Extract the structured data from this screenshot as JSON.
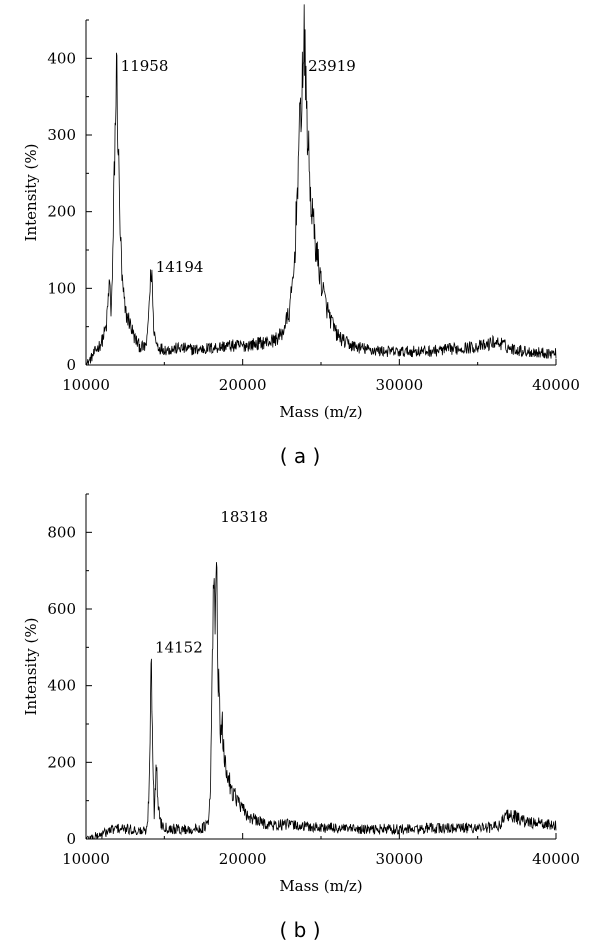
{
  "chart_data": [
    {
      "type": "line",
      "caption": "( a )",
      "xlabel": "Mass (m/z)",
      "ylabel": "Intensity (%)",
      "xlim": [
        10000,
        40000
      ],
      "ylim": [
        0,
        450
      ],
      "xticks": [
        10000,
        20000,
        30000,
        40000
      ],
      "yticks": [
        0,
        100,
        200,
        300,
        400
      ],
      "grid": false,
      "series": [
        {
          "color": "#000000",
          "x": [
            10000,
            10300,
            10600,
            11000,
            11300,
            11500,
            11600,
            11700,
            11800,
            11958,
            12050,
            12150,
            12300,
            12500,
            12800,
            13100,
            13400,
            13700,
            13900,
            14050,
            14194,
            14300,
            14450,
            14700,
            15200,
            16000,
            17000,
            18000,
            19000,
            20000,
            21000,
            22000,
            22500,
            23000,
            23300,
            23500,
            23700,
            23850,
            23919,
            24000,
            24150,
            24300,
            24500,
            24700,
            25000,
            25300,
            25600,
            26000,
            26500,
            27000,
            28000,
            29000,
            30000,
            31000,
            32000,
            33000,
            34000,
            35000,
            35500,
            36000,
            36500,
            37000,
            38000,
            39000,
            40000
          ],
          "y": [
            0,
            8,
            18,
            30,
            50,
            110,
            70,
            120,
            250,
            390,
            290,
            200,
            110,
            70,
            55,
            35,
            25,
            22,
            30,
            90,
            128,
            55,
            30,
            22,
            20,
            22,
            20,
            22,
            25,
            25,
            28,
            32,
            40,
            70,
            130,
            240,
            330,
            390,
            420,
            380,
            300,
            230,
            185,
            150,
            110,
            80,
            60,
            40,
            30,
            25,
            20,
            18,
            17,
            18,
            18,
            20,
            22,
            24,
            25,
            30,
            28,
            22,
            18,
            16,
            15
          ]
        }
      ],
      "annotations": [
        {
          "text": "11958",
          "x": 11958,
          "y": 390
        },
        {
          "text": "14194",
          "x": 14194,
          "y": 128
        },
        {
          "text": "23919",
          "x": 23919,
          "y": 390
        }
      ]
    },
    {
      "type": "line",
      "caption": "( b )",
      "xlabel": "Mass (m/z)",
      "ylabel": "Intensity (%)",
      "xlim": [
        10000,
        40000
      ],
      "ylim": [
        0,
        900
      ],
      "xticks": [
        10000,
        20000,
        30000,
        40000
      ],
      "yticks": [
        0,
        200,
        400,
        600,
        800
      ],
      "grid": false,
      "series": [
        {
          "color": "#000000",
          "x": [
            10000,
            10500,
            11000,
            11500,
            12000,
            12500,
            13000,
            13500,
            13900,
            14050,
            14152,
            14250,
            14350,
            14420,
            14500,
            14600,
            14800,
            15200,
            16000,
            17000,
            17500,
            17800,
            17950,
            18050,
            18150,
            18250,
            18318,
            18400,
            18500,
            18600,
            18700,
            18800,
            19000,
            19300,
            19700,
            20000,
            20500,
            21000,
            22000,
            23000,
            24000,
            25000,
            26000,
            27000,
            28000,
            29000,
            30000,
            31000,
            32000,
            33000,
            34000,
            35000,
            36000,
            36500,
            36700,
            37000,
            37500,
            38000,
            39000,
            40000
          ],
          "y": [
            0,
            5,
            12,
            22,
            28,
            25,
            24,
            20,
            22,
            150,
            500,
            280,
            60,
            140,
            185,
            90,
            40,
            28,
            25,
            25,
            30,
            40,
            120,
            450,
            650,
            560,
            840,
            480,
            360,
            260,
            290,
            220,
            170,
            130,
            100,
            75,
            55,
            45,
            35,
            38,
            32,
            30,
            28,
            25,
            24,
            26,
            25,
            25,
            28,
            28,
            28,
            30,
            30,
            40,
            60,
            65,
            55,
            45,
            40,
            35
          ]
        }
      ],
      "annotations": [
        {
          "text": "14152",
          "x": 14152,
          "y": 500
        },
        {
          "text": "18318",
          "x": 18318,
          "y": 840
        }
      ]
    }
  ]
}
